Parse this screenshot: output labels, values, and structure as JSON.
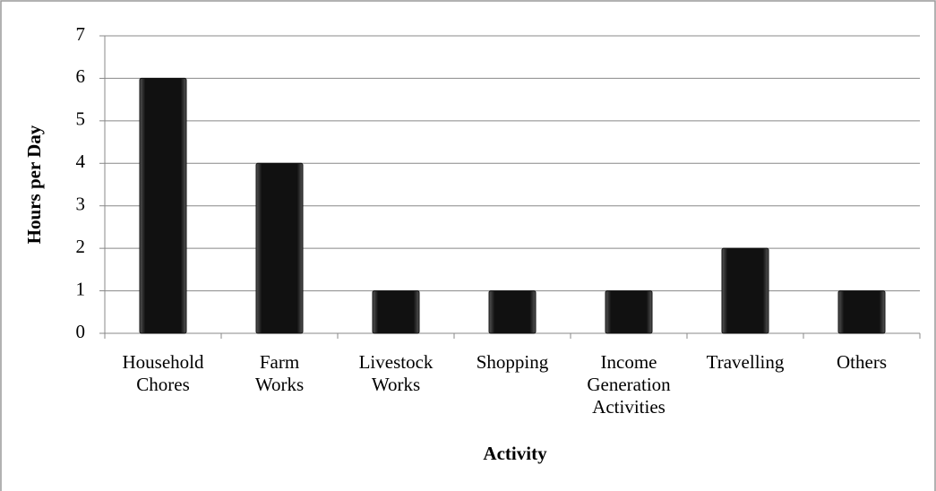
{
  "chart_data": {
    "type": "bar",
    "x_label": "Activity",
    "y_label": "Hours per Day",
    "categories": [
      "Household Chores",
      "Farm Works",
      "Livestock Works",
      "Shopping",
      "Income Generation Activities",
      "Travelling",
      "Others"
    ],
    "values": [
      6,
      4,
      1,
      1,
      1,
      2,
      1
    ],
    "color": "#111111",
    "ylim": [
      0,
      7
    ],
    "yticks": [
      0,
      1,
      2,
      3,
      4,
      5,
      6,
      7
    ],
    "grid": true
  }
}
